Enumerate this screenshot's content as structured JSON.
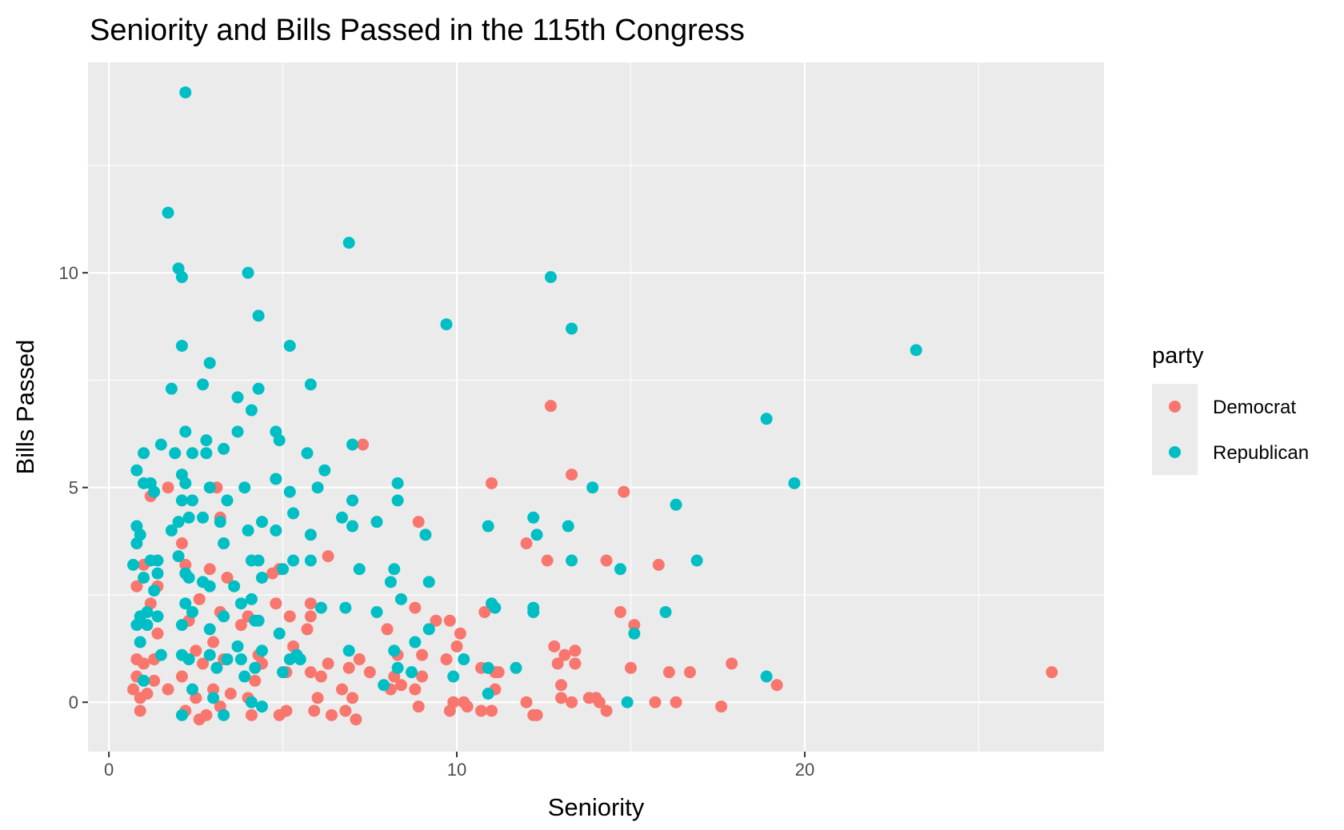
{
  "chart_data": {
    "type": "scatter",
    "title": "Seniority and Bills Passed in the 115th Congress",
    "xlabel": "Seniority",
    "ylabel": "Bills Passed",
    "xlim": [
      -0.6,
      28.6
    ],
    "ylim": [
      -1.15,
      14.9
    ],
    "x_ticks": [
      0,
      10,
      20
    ],
    "y_ticks": [
      0,
      5,
      10
    ],
    "grid": true,
    "legend": {
      "title": "party",
      "position": "right"
    },
    "series": [
      {
        "name": "Democrat",
        "color": "#F8766D",
        "points": [
          [
            0.7,
            0.3
          ],
          [
            0.8,
            0.6
          ],
          [
            0.9,
            0.1
          ],
          [
            1.0,
            0.9
          ],
          [
            0.8,
            2.7
          ],
          [
            1.0,
            3.2
          ],
          [
            1.2,
            4.8
          ],
          [
            1.1,
            0.2
          ],
          [
            1.3,
            0.5
          ],
          [
            1.4,
            1.6
          ],
          [
            1.3,
            1.0
          ],
          [
            0.9,
            -0.2
          ],
          [
            0.8,
            1.0
          ],
          [
            1.2,
            2.3
          ],
          [
            1.4,
            2.7
          ],
          [
            1.7,
            0.3
          ],
          [
            1.7,
            5.0
          ],
          [
            2.1,
            3.7
          ],
          [
            2.2,
            3.2
          ],
          [
            2.3,
            1.9
          ],
          [
            2.1,
            0.6
          ],
          [
            2.2,
            -0.2
          ],
          [
            2.5,
            0.1
          ],
          [
            2.5,
            1.2
          ],
          [
            2.6,
            2.4
          ],
          [
            2.7,
            0.9
          ],
          [
            2.9,
            3.1
          ],
          [
            3.0,
            1.4
          ],
          [
            3.0,
            0.3
          ],
          [
            3.1,
            5.0
          ],
          [
            3.2,
            4.3
          ],
          [
            3.2,
            2.1
          ],
          [
            3.3,
            1.0
          ],
          [
            3.5,
            0.2
          ],
          [
            3.4,
            2.9
          ],
          [
            2.8,
            -0.3
          ],
          [
            2.6,
            -0.4
          ],
          [
            3.2,
            -0.1
          ],
          [
            3.8,
            1.8
          ],
          [
            4.0,
            2.0
          ],
          [
            4.0,
            0.1
          ],
          [
            4.2,
            0.5
          ],
          [
            4.3,
            1.1
          ],
          [
            4.4,
            0.9
          ],
          [
            4.1,
            -0.3
          ],
          [
            4.7,
            3.0
          ],
          [
            4.8,
            2.3
          ],
          [
            4.9,
            3.1
          ],
          [
            4.9,
            -0.3
          ],
          [
            5.1,
            -0.2
          ],
          [
            5.1,
            0.7
          ],
          [
            5.2,
            2.0
          ],
          [
            5.3,
            1.3
          ],
          [
            5.7,
            1.7
          ],
          [
            5.8,
            2.0
          ],
          [
            5.8,
            2.3
          ],
          [
            5.8,
            0.7
          ],
          [
            5.9,
            -0.2
          ],
          [
            6.0,
            0.1
          ],
          [
            6.1,
            0.6
          ],
          [
            6.3,
            3.4
          ],
          [
            6.3,
            0.9
          ],
          [
            6.4,
            -0.3
          ],
          [
            6.7,
            0.3
          ],
          [
            6.8,
            -0.2
          ],
          [
            6.9,
            0.8
          ],
          [
            7.0,
            0.1
          ],
          [
            7.1,
            -0.4
          ],
          [
            7.2,
            1.0
          ],
          [
            7.3,
            6.0
          ],
          [
            7.5,
            0.7
          ],
          [
            8.0,
            1.7
          ],
          [
            8.1,
            0.3
          ],
          [
            8.2,
            0.6
          ],
          [
            8.3,
            1.1
          ],
          [
            8.4,
            0.4
          ],
          [
            8.8,
            0.3
          ],
          [
            8.8,
            2.2
          ],
          [
            8.9,
            4.2
          ],
          [
            8.9,
            -0.1
          ],
          [
            9.0,
            0.6
          ],
          [
            9.0,
            1.1
          ],
          [
            9.4,
            1.9
          ],
          [
            9.7,
            1.0
          ],
          [
            9.8,
            1.9
          ],
          [
            9.8,
            -0.2
          ],
          [
            9.9,
            0.0
          ],
          [
            10.0,
            1.3
          ],
          [
            10.1,
            1.6
          ],
          [
            10.2,
            0.0
          ],
          [
            10.3,
            -0.1
          ],
          [
            10.7,
            0.8
          ],
          [
            10.7,
            -0.2
          ],
          [
            10.8,
            2.1
          ],
          [
            11.0,
            5.1
          ],
          [
            11.0,
            -0.2
          ],
          [
            11.1,
            0.7
          ],
          [
            11.1,
            0.3
          ],
          [
            11.2,
            0.7
          ],
          [
            12.0,
            3.7
          ],
          [
            12.0,
            0.0
          ],
          [
            12.2,
            -0.3
          ],
          [
            12.3,
            -0.3
          ],
          [
            12.6,
            3.3
          ],
          [
            12.7,
            6.9
          ],
          [
            12.8,
            1.3
          ],
          [
            12.9,
            0.9
          ],
          [
            13.0,
            0.4
          ],
          [
            13.0,
            0.1
          ],
          [
            13.1,
            1.1
          ],
          [
            13.3,
            5.3
          ],
          [
            13.3,
            0.0
          ],
          [
            13.4,
            0.9
          ],
          [
            13.4,
            1.2
          ],
          [
            13.8,
            0.1
          ],
          [
            14.0,
            0.1
          ],
          [
            14.1,
            0.0
          ],
          [
            14.3,
            3.3
          ],
          [
            14.3,
            -0.2
          ],
          [
            14.7,
            2.1
          ],
          [
            14.8,
            4.9
          ],
          [
            15.0,
            0.8
          ],
          [
            15.1,
            1.8
          ],
          [
            15.7,
            0.0
          ],
          [
            15.8,
            3.2
          ],
          [
            16.1,
            0.7
          ],
          [
            16.3,
            0.0
          ],
          [
            16.7,
            0.7
          ],
          [
            17.6,
            -0.1
          ],
          [
            17.9,
            0.9
          ],
          [
            19.2,
            0.4
          ],
          [
            27.1,
            0.7
          ]
        ]
      },
      {
        "name": "Republican",
        "color": "#00BFC4",
        "points": [
          [
            0.7,
            3.2
          ],
          [
            0.8,
            5.4
          ],
          [
            0.8,
            4.1
          ],
          [
            0.8,
            3.7
          ],
          [
            0.9,
            2.0
          ],
          [
            0.8,
            1.8
          ],
          [
            0.9,
            1.4
          ],
          [
            1.0,
            5.8
          ],
          [
            1.0,
            5.1
          ],
          [
            0.9,
            3.9
          ],
          [
            1.0,
            2.9
          ],
          [
            1.1,
            2.1
          ],
          [
            1.1,
            1.8
          ],
          [
            1.0,
            0.5
          ],
          [
            1.2,
            5.1
          ],
          [
            1.3,
            4.9
          ],
          [
            1.2,
            3.3
          ],
          [
            1.3,
            2.6
          ],
          [
            1.4,
            3.3
          ],
          [
            1.5,
            6.0
          ],
          [
            1.4,
            3.0
          ],
          [
            1.4,
            2.0
          ],
          [
            1.5,
            1.1
          ],
          [
            1.7,
            11.4
          ],
          [
            1.8,
            7.3
          ],
          [
            1.8,
            4.0
          ],
          [
            1.9,
            5.8
          ],
          [
            2.0,
            10.1
          ],
          [
            2.1,
            9.9
          ],
          [
            2.1,
            8.3
          ],
          [
            2.2,
            14.2
          ],
          [
            2.2,
            6.3
          ],
          [
            2.1,
            5.3
          ],
          [
            2.2,
            5.1
          ],
          [
            2.1,
            4.7
          ],
          [
            2.0,
            4.2
          ],
          [
            2.0,
            3.4
          ],
          [
            2.2,
            3.0
          ],
          [
            2.2,
            2.3
          ],
          [
            2.1,
            1.8
          ],
          [
            2.1,
            1.1
          ],
          [
            2.1,
            -0.3
          ],
          [
            2.4,
            5.8
          ],
          [
            2.4,
            4.7
          ],
          [
            2.3,
            4.3
          ],
          [
            2.3,
            2.9
          ],
          [
            2.4,
            2.1
          ],
          [
            2.3,
            1.0
          ],
          [
            2.4,
            0.3
          ],
          [
            2.7,
            7.4
          ],
          [
            2.9,
            7.9
          ],
          [
            2.8,
            6.1
          ],
          [
            2.8,
            5.8
          ],
          [
            2.9,
            5.0
          ],
          [
            2.7,
            4.3
          ],
          [
            2.7,
            2.8
          ],
          [
            2.9,
            2.7
          ],
          [
            2.9,
            1.7
          ],
          [
            2.9,
            1.1
          ],
          [
            3.1,
            0.8
          ],
          [
            3.0,
            0.1
          ],
          [
            3.2,
            4.2
          ],
          [
            3.3,
            5.9
          ],
          [
            3.4,
            4.7
          ],
          [
            3.3,
            3.7
          ],
          [
            3.3,
            2.0
          ],
          [
            3.4,
            1.0
          ],
          [
            3.3,
            -0.3
          ],
          [
            3.7,
            7.1
          ],
          [
            3.7,
            6.3
          ],
          [
            3.6,
            2.7
          ],
          [
            3.8,
            2.3
          ],
          [
            3.7,
            1.3
          ],
          [
            3.8,
            1.0
          ],
          [
            3.9,
            0.6
          ],
          [
            4.0,
            10.0
          ],
          [
            4.1,
            6.8
          ],
          [
            3.9,
            5.0
          ],
          [
            4.0,
            4.0
          ],
          [
            4.1,
            3.3
          ],
          [
            4.1,
            2.4
          ],
          [
            4.2,
            1.9
          ],
          [
            4.2,
            0.8
          ],
          [
            4.1,
            0.0
          ],
          [
            4.3,
            9.0
          ],
          [
            4.3,
            7.3
          ],
          [
            4.4,
            4.2
          ],
          [
            4.3,
            3.3
          ],
          [
            4.4,
            2.9
          ],
          [
            4.3,
            1.9
          ],
          [
            4.4,
            1.2
          ],
          [
            4.4,
            -0.1
          ],
          [
            4.8,
            6.3
          ],
          [
            4.8,
            5.2
          ],
          [
            4.8,
            4.0
          ],
          [
            4.9,
            6.1
          ],
          [
            4.9,
            1.6
          ],
          [
            5.0,
            0.7
          ],
          [
            5.0,
            3.1
          ],
          [
            5.2,
            8.3
          ],
          [
            5.2,
            4.9
          ],
          [
            5.3,
            4.4
          ],
          [
            5.2,
            1.0
          ],
          [
            5.3,
            3.3
          ],
          [
            5.4,
            1.1
          ],
          [
            5.5,
            1.0
          ],
          [
            5.7,
            5.8
          ],
          [
            5.8,
            7.4
          ],
          [
            5.8,
            3.9
          ],
          [
            5.8,
            3.3
          ],
          [
            6.0,
            5.0
          ],
          [
            6.1,
            2.2
          ],
          [
            6.2,
            5.4
          ],
          [
            6.7,
            4.3
          ],
          [
            6.8,
            2.2
          ],
          [
            6.9,
            10.7
          ],
          [
            6.9,
            1.2
          ],
          [
            7.0,
            6.0
          ],
          [
            7.0,
            4.1
          ],
          [
            7.0,
            4.7
          ],
          [
            7.2,
            3.1
          ],
          [
            7.7,
            4.2
          ],
          [
            7.7,
            2.1
          ],
          [
            7.9,
            0.4
          ],
          [
            8.2,
            3.1
          ],
          [
            8.3,
            5.1
          ],
          [
            8.3,
            4.7
          ],
          [
            8.4,
            2.4
          ],
          [
            8.2,
            1.2
          ],
          [
            8.1,
            2.8
          ],
          [
            8.3,
            0.8
          ],
          [
            8.7,
            0.7
          ],
          [
            8.8,
            1.4
          ],
          [
            9.1,
            3.9
          ],
          [
            9.2,
            2.8
          ],
          [
            9.2,
            1.7
          ],
          [
            9.7,
            8.8
          ],
          [
            9.9,
            0.6
          ],
          [
            10.2,
            1.0
          ],
          [
            10.9,
            4.1
          ],
          [
            11.0,
            2.3
          ],
          [
            11.1,
            2.2
          ],
          [
            10.9,
            0.8
          ],
          [
            10.9,
            0.2
          ],
          [
            11.7,
            0.8
          ],
          [
            12.2,
            4.3
          ],
          [
            12.3,
            3.9
          ],
          [
            12.2,
            2.1
          ],
          [
            12.2,
            2.2
          ],
          [
            12.7,
            9.9
          ],
          [
            13.3,
            8.7
          ],
          [
            13.2,
            4.1
          ],
          [
            13.3,
            3.3
          ],
          [
            13.9,
            5.0
          ],
          [
            14.7,
            3.1
          ],
          [
            14.9,
            0.0
          ],
          [
            15.1,
            1.6
          ],
          [
            16.0,
            2.1
          ],
          [
            16.3,
            4.6
          ],
          [
            16.9,
            3.3
          ],
          [
            18.9,
            6.6
          ],
          [
            18.9,
            0.6
          ],
          [
            19.7,
            5.1
          ],
          [
            23.2,
            8.2
          ]
        ]
      }
    ]
  }
}
